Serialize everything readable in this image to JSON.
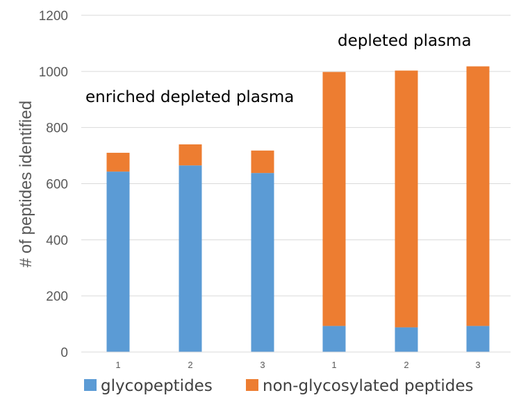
{
  "chart_data": {
    "type": "bar",
    "stacked": true,
    "ylabel": "# of peptides identified",
    "ylim": [
      0,
      1200
    ],
    "yticks": [
      0,
      200,
      400,
      600,
      800,
      1000,
      1200
    ],
    "grid": true,
    "categories": [
      "1",
      "2",
      "3",
      "1",
      "2",
      "3"
    ],
    "series": [
      {
        "name": "glycopeptides",
        "color": "#5B9BD5",
        "values": [
          643,
          665,
          638,
          93,
          88,
          93
        ]
      },
      {
        "name": "non-glycosylated peptides",
        "color": "#ED7D31",
        "values": [
          67,
          75,
          80,
          905,
          915,
          925
        ]
      }
    ],
    "annotations": [
      {
        "text": "enriched depleted plasma"
      },
      {
        "text": "depleted plasma"
      }
    ],
    "legend_position": "bottom"
  }
}
